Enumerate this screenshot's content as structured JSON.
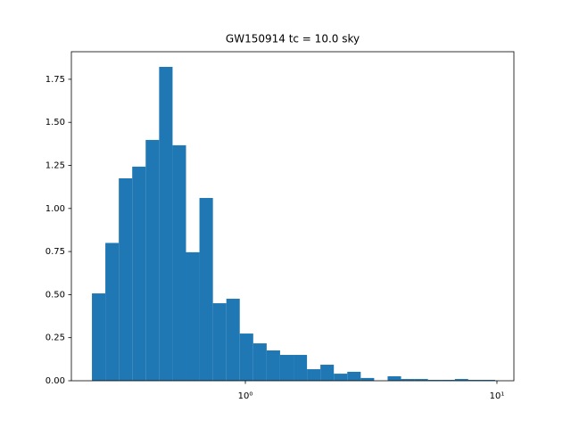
{
  "chart_data": {
    "type": "histogram",
    "title": "GW150914 tc = 10.0 sky",
    "color": "#1f77b4",
    "xscale": "log",
    "bins": [
      0.2455,
      0.2776,
      0.314,
      0.355,
      0.4015,
      0.4541,
      0.5136,
      0.5808,
      0.6569,
      0.743,
      0.8402,
      0.95,
      1.0745,
      1.2152,
      1.374,
      1.5546,
      1.7578,
      1.9874,
      2.2475,
      2.5418,
      2.8746,
      3.2509,
      3.677,
      4.1582,
      4.702,
      5.3184,
      6.0146,
      6.8017,
      7.6913,
      8.6997,
      9.838
    ],
    "counts": [
      0.507,
      0.8,
      1.175,
      1.243,
      1.398,
      1.822,
      1.367,
      0.746,
      1.061,
      0.45,
      0.476,
      0.274,
      0.217,
      0.176,
      0.15,
      0.15,
      0.067,
      0.093,
      0.041,
      0.052,
      0.016,
      0,
      0.026,
      0.01,
      0.01,
      0.005,
      0.005,
      0.01,
      0.005,
      0.005
    ],
    "xlim": [
      0.2034,
      11.68
    ],
    "xticks": [
      {
        "value": 1,
        "label": "10⁰"
      },
      {
        "value": 10,
        "label": "10¹"
      }
    ],
    "ylim": [
      0,
      1.91
    ],
    "yticks": [
      {
        "value": 0,
        "label": "0.00"
      },
      {
        "value": 0.25,
        "label": "0.25"
      },
      {
        "value": 0.5,
        "label": "0.50"
      },
      {
        "value": 0.75,
        "label": "0.75"
      },
      {
        "value": 1,
        "label": "1.00"
      },
      {
        "value": 1.25,
        "label": "1.25"
      },
      {
        "value": 1.5,
        "label": "1.50"
      },
      {
        "value": 1.75,
        "label": "1.75"
      }
    ]
  }
}
